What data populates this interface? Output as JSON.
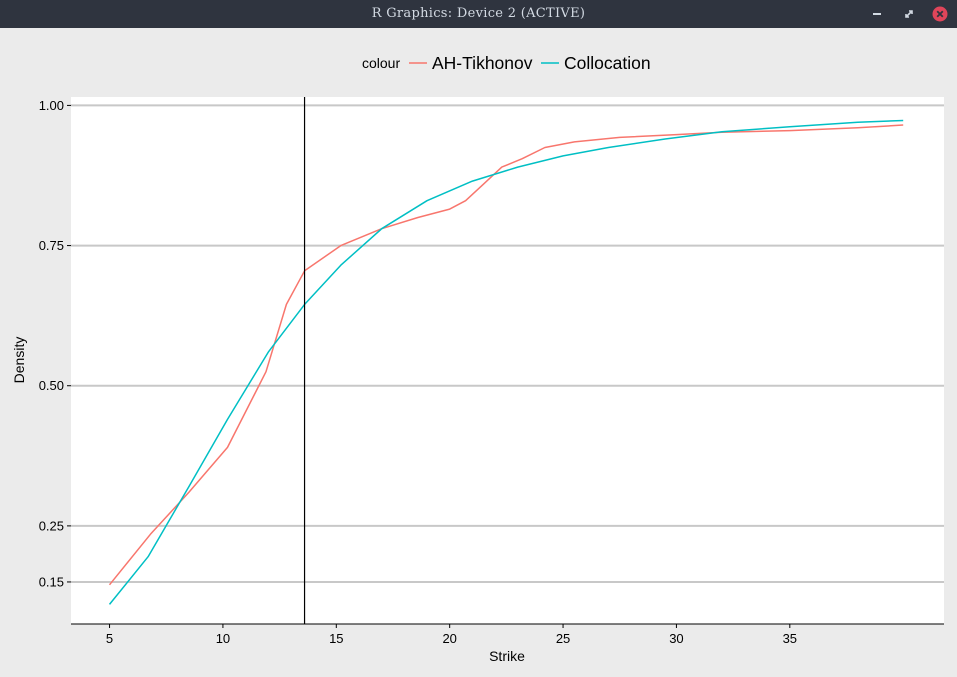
{
  "window": {
    "title": "R  Graphics:  Device  2  (ACTIVE)",
    "buttons": {
      "minimize": "minimize-icon",
      "maximize": "maximize-icon",
      "close": "close-icon"
    }
  },
  "colors": {
    "titlebar": "#2f343f",
    "close": "#e0455a",
    "ah_tikhonov": "#f8766d",
    "collocation": "#00bfc4",
    "vline": "#000000",
    "grid": "#c8c8c8"
  },
  "chart_data": {
    "type": "line",
    "title": "",
    "xlabel": "Strike",
    "ylabel": "Density",
    "legend": {
      "title": "colour",
      "position": "top"
    },
    "xlim": [
      3.3,
      41.8
    ],
    "ylim": [
      0.075,
      1.015
    ],
    "x_ticks": [
      5,
      10,
      15,
      20,
      25,
      30,
      35
    ],
    "x_tick_labels": [
      "5",
      "10",
      "15",
      "20",
      "25",
      "30",
      "35"
    ],
    "y_ticks": [
      0.15,
      0.25,
      0.5,
      0.75,
      1.0
    ],
    "y_tick_labels": [
      "0.15",
      "0.25",
      "0.50",
      "0.75",
      "1.00"
    ],
    "grid": {
      "horizontal": true,
      "vertical": false
    },
    "vline": 13.6,
    "series": [
      {
        "name": "AH-Tikhonov",
        "color": "#f8766d",
        "points": [
          [
            5,
            0.145
          ],
          [
            6.8,
            0.235
          ],
          [
            8.5,
            0.31
          ],
          [
            10.2,
            0.39
          ],
          [
            11.9,
            0.525
          ],
          [
            12.8,
            0.645
          ],
          [
            13.6,
            0.705
          ],
          [
            15.2,
            0.75
          ],
          [
            17,
            0.78
          ],
          [
            18.6,
            0.8
          ],
          [
            20,
            0.815
          ],
          [
            20.7,
            0.83
          ],
          [
            21.5,
            0.86
          ],
          [
            22.3,
            0.89
          ],
          [
            23.2,
            0.905
          ],
          [
            24.2,
            0.925
          ],
          [
            25.5,
            0.935
          ],
          [
            27.5,
            0.943
          ],
          [
            30,
            0.948
          ],
          [
            32,
            0.952
          ],
          [
            35,
            0.955
          ],
          [
            38,
            0.96
          ],
          [
            40,
            0.965
          ]
        ]
      },
      {
        "name": "Collocation",
        "color": "#00bfc4",
        "points": [
          [
            5,
            0.11
          ],
          [
            6.7,
            0.195
          ],
          [
            8.5,
            0.32
          ],
          [
            10.2,
            0.44
          ],
          [
            12,
            0.56
          ],
          [
            13.6,
            0.645
          ],
          [
            15.2,
            0.715
          ],
          [
            17,
            0.78
          ],
          [
            19,
            0.83
          ],
          [
            21,
            0.865
          ],
          [
            23,
            0.89
          ],
          [
            25,
            0.91
          ],
          [
            27,
            0.925
          ],
          [
            29.5,
            0.94
          ],
          [
            32,
            0.953
          ],
          [
            35,
            0.962
          ],
          [
            38,
            0.97
          ],
          [
            40,
            0.973
          ]
        ]
      }
    ]
  }
}
